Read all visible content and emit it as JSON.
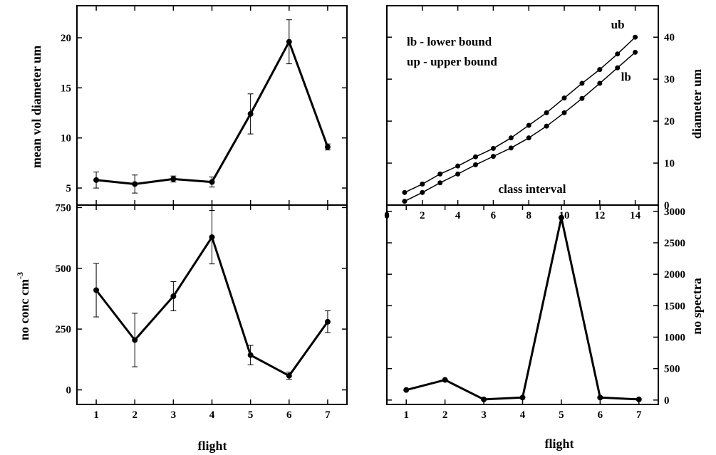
{
  "chart_data": [
    {
      "type": "line",
      "ylabel": "mean vol diameter  um",
      "xlim": [
        0.5,
        7.5
      ],
      "ylim": [
        3.3,
        23.2
      ],
      "x_ticks": [
        "1",
        "2",
        "3",
        "4",
        "5",
        "6",
        "7"
      ],
      "y_ticks": [
        "5",
        "10",
        "15",
        "20"
      ],
      "series": [
        {
          "x": [
            1,
            2,
            3,
            4,
            5,
            6,
            7
          ],
          "values": [
            5.8,
            5.4,
            5.9,
            5.6,
            12.4,
            19.6,
            9.1
          ],
          "error": [
            0.8,
            0.9,
            0.3,
            0.5,
            2.0,
            2.2,
            0.3
          ]
        }
      ]
    },
    {
      "type": "line",
      "ylabel": "diameter   um",
      "xlabel": "class interval",
      "xlim": [
        0,
        15.3
      ],
      "ylim": [
        0,
        47.5
      ],
      "x_ticks": [
        "0",
        "2",
        "4",
        "6",
        "8",
        "10",
        "12",
        "14"
      ],
      "y_ticks": [
        "0",
        "10",
        "20",
        "30",
        "40"
      ],
      "legend_lines": [
        "lb -  lower bound",
        "up -  upper bound"
      ],
      "series": [
        {
          "name": "ub",
          "x": [
            1,
            2,
            3,
            4,
            5,
            6,
            7,
            8,
            9,
            10,
            11,
            12,
            13,
            14
          ],
          "values": [
            3.0,
            5.0,
            7.4,
            9.3,
            11.5,
            13.5,
            16.0,
            19.0,
            22.0,
            25.5,
            29.0,
            32.3,
            36.0,
            40.0
          ]
        },
        {
          "name": "lb",
          "x": [
            1,
            2,
            3,
            4,
            5,
            6,
            7,
            8,
            9,
            10,
            11,
            12,
            13,
            14
          ],
          "values": [
            0.9,
            3.0,
            5.3,
            7.4,
            9.6,
            11.6,
            13.6,
            16.0,
            18.8,
            22.0,
            25.4,
            29.0,
            32.7,
            36.4
          ]
        }
      ]
    },
    {
      "type": "line",
      "xlabel": "flight",
      "ylabel_main": "no conc  cm",
      "ylabel_sup": "-3",
      "xlim": [
        0.5,
        7.5
      ],
      "ylim": [
        -60,
        760
      ],
      "x_ticks": [
        "1",
        "2",
        "3",
        "4",
        "5",
        "6",
        "7"
      ],
      "y_ticks": [
        "0",
        "250",
        "500",
        "750"
      ],
      "series": [
        {
          "x": [
            1,
            2,
            3,
            4,
            5,
            6,
            7
          ],
          "values": [
            410,
            205,
            385,
            628,
            143,
            58,
            280
          ],
          "error": [
            110,
            110,
            60,
            110,
            40,
            15,
            45
          ]
        }
      ]
    },
    {
      "type": "line",
      "xlabel": "flight",
      "ylabel": "no spectra",
      "xlim": [
        0.5,
        7.5
      ],
      "ylim": [
        -70,
        3100
      ],
      "x_ticks": [
        "1",
        "2",
        "3",
        "4",
        "5",
        "6",
        "7"
      ],
      "y_ticks": [
        "0",
        "500",
        "1000",
        "1500",
        "2000",
        "2500",
        "3000"
      ],
      "series": [
        {
          "x": [
            1,
            2,
            3,
            4,
            5,
            6,
            7
          ],
          "values": [
            160,
            320,
            10,
            40,
            2900,
            40,
            10
          ]
        }
      ]
    }
  ]
}
